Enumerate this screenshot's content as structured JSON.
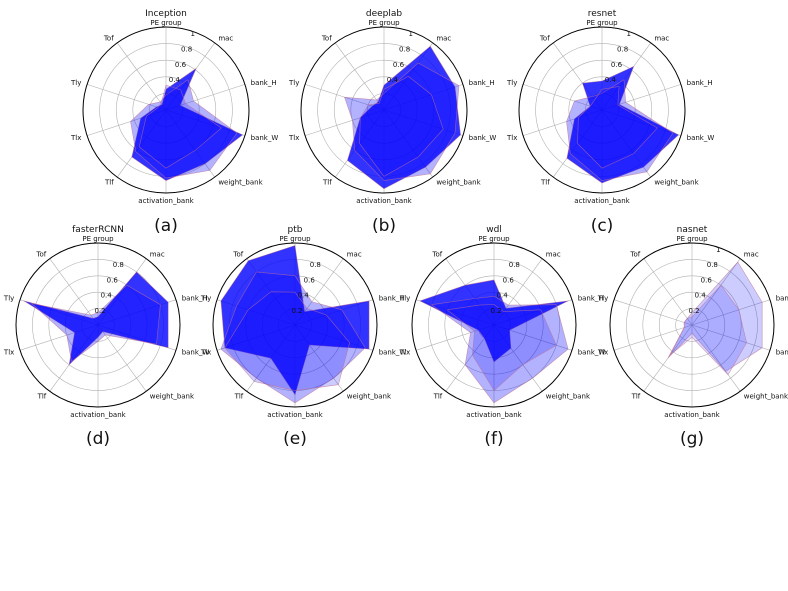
{
  "figure": {
    "background": "#ffffff",
    "fill_color": "#0000ff",
    "edge_color": "#c07090"
  },
  "chart_data": [
    {
      "type": "radar",
      "title": "Inception",
      "caption": "(a)",
      "axes": [
        "PE group",
        "mac",
        "bank_H",
        "bank_W",
        "weight_bank",
        "activation_bank",
        "Tlf",
        "Tlx",
        "Tly",
        "Tof"
      ],
      "radial_ticks": [
        "0.4",
        "0.6",
        "0.8",
        "1"
      ],
      "rlim": [
        0,
        1
      ],
      "grid": true,
      "series": [
        {
          "values": [
            0.25,
            0.62,
            0.18,
            0.97,
            0.8,
            0.85,
            0.7,
            0.32,
            0.12,
            0.08
          ],
          "opacity": 0.8
        },
        {
          "values": [
            0.18,
            0.45,
            0.35,
            0.9,
            0.9,
            0.82,
            0.62,
            0.45,
            0.22,
            0.12
          ],
          "opacity": 0.3
        },
        {
          "values": [
            0.3,
            0.3,
            0.25,
            0.7,
            0.6,
            0.7,
            0.55,
            0.25,
            0.1,
            0.1
          ],
          "opacity": 0.2
        }
      ]
    },
    {
      "type": "radar",
      "title": "deeplab",
      "caption": "(b)",
      "axes": [
        "PE group",
        "mac",
        "bank_H",
        "bank_W",
        "weight_bank",
        "activation_bank",
        "Tlf",
        "Tlx",
        "Tly",
        "Tof"
      ],
      "radial_ticks": [
        "0.4",
        "0.6",
        "0.8",
        "1"
      ],
      "rlim": [
        0,
        1
      ],
      "grid": true,
      "series": [
        {
          "values": [
            0.3,
            0.95,
            0.9,
            0.97,
            0.85,
            0.95,
            0.75,
            0.3,
            0.15,
            0.12
          ],
          "opacity": 0.8
        },
        {
          "values": [
            0.2,
            0.7,
            0.95,
            0.9,
            0.95,
            0.85,
            0.6,
            0.4,
            0.5,
            0.15
          ],
          "opacity": 0.3
        },
        {
          "values": [
            0.25,
            0.5,
            0.6,
            0.75,
            0.7,
            0.8,
            0.5,
            0.3,
            0.2,
            0.1
          ],
          "opacity": 0.2
        }
      ]
    },
    {
      "type": "radar",
      "title": "resnet",
      "caption": "(c)",
      "axes": [
        "PE group",
        "mac",
        "bank_H",
        "bank_W",
        "weight_bank",
        "activation_bank",
        "Tlf",
        "Tlx",
        "Tly",
        "Tof"
      ],
      "radial_ticks": [
        "0.4",
        "0.6",
        "0.8",
        "1"
      ],
      "rlim": [
        0,
        1
      ],
      "grid": true,
      "series": [
        {
          "values": [
            0.35,
            0.65,
            0.22,
            0.97,
            0.85,
            0.88,
            0.72,
            0.35,
            0.15,
            0.4
          ],
          "opacity": 0.8
        },
        {
          "values": [
            0.2,
            0.45,
            0.3,
            0.9,
            0.92,
            0.85,
            0.65,
            0.45,
            0.35,
            0.2
          ],
          "opacity": 0.3
        },
        {
          "values": [
            0.25,
            0.35,
            0.2,
            0.7,
            0.65,
            0.7,
            0.5,
            0.3,
            0.15,
            0.15
          ],
          "opacity": 0.2
        }
      ]
    },
    {
      "type": "radar",
      "title": "fasterRCNN",
      "caption": "(d)",
      "axes": [
        "PE group",
        "mac",
        "bank_H",
        "bank_W",
        "weight_bank",
        "activation_bank",
        "Tlf",
        "Tlx",
        "Tly",
        "Tof"
      ],
      "radial_ticks": [
        "0.2",
        "0.4",
        "0.6",
        "0.8"
      ],
      "rlim": [
        0,
        1
      ],
      "grid": true,
      "series": [
        {
          "values": [
            0.1,
            0.8,
            0.9,
            0.9,
            0.1,
            0.15,
            0.6,
            0.3,
            0.95,
            0.1
          ],
          "opacity": 0.8
        },
        {
          "values": [
            0.15,
            0.6,
            0.8,
            0.75,
            0.15,
            0.2,
            0.55,
            0.4,
            0.85,
            0.15
          ],
          "opacity": 0.3
        }
      ]
    },
    {
      "type": "radar",
      "title": "ptb",
      "caption": "(e)",
      "axes": [
        "PE group",
        "mac",
        "bank_H",
        "bank_W",
        "weight_bank",
        "activation_bank",
        "Tlf",
        "Tlx",
        "Tly",
        "Tof"
      ],
      "radial_ticks": [
        "0.2",
        "0.4",
        "0.6",
        "0.8"
      ],
      "rlim": [
        0,
        1
      ],
      "grid": true,
      "series": [
        {
          "values": [
            0.97,
            0.2,
            0.95,
            0.95,
            0.3,
            0.85,
            0.5,
            0.9,
            0.95,
            0.97
          ],
          "opacity": 0.8
        },
        {
          "values": [
            0.6,
            0.35,
            0.6,
            0.9,
            0.8,
            0.95,
            0.8,
            0.95,
            0.75,
            0.8
          ],
          "opacity": 0.3
        },
        {
          "values": [
            0.4,
            0.25,
            0.4,
            0.7,
            0.9,
            0.8,
            0.85,
            0.9,
            0.6,
            0.5
          ],
          "opacity": 0.2
        }
      ]
    },
    {
      "type": "radar",
      "title": "wdl",
      "caption": "(f)",
      "axes": [
        "PE group",
        "mac",
        "bank_H",
        "bank_W",
        "weight_bank",
        "activation_bank",
        "Tlf",
        "Tlx",
        "Tly",
        "Tof"
      ],
      "radial_ticks": [
        "0.2",
        "0.4",
        "0.6",
        "0.8"
      ],
      "rlim": [
        0,
        1
      ],
      "grid": true,
      "series": [
        {
          "values": [
            0.55,
            0.25,
            0.95,
            0.2,
            0.35,
            0.45,
            0.2,
            0.2,
            0.95,
            0.6
          ],
          "opacity": 0.8
        },
        {
          "values": [
            0.35,
            0.3,
            0.8,
            0.95,
            0.8,
            0.95,
            0.6,
            0.3,
            0.8,
            0.4
          ],
          "opacity": 0.3
        },
        {
          "values": [
            0.25,
            0.2,
            0.6,
            0.8,
            0.6,
            0.8,
            0.45,
            0.25,
            0.6,
            0.3
          ],
          "opacity": 0.2
        }
      ]
    },
    {
      "type": "radar",
      "title": "nasnet",
      "caption": "(g)",
      "axes": [
        "PE group",
        "mac",
        "bank_H",
        "bank_W",
        "weight_bank",
        "activation_bank",
        "Tlf",
        "Tlx",
        "Tly",
        "Tof"
      ],
      "radial_ticks": [
        "0.2",
        "0.4",
        "0.6",
        "0.8",
        "1"
      ],
      "rlim": [
        0,
        1
      ],
      "grid": true,
      "series": [
        {
          "values": [
            0.15,
            0.95,
            0.9,
            0.9,
            0.7,
            0.1,
            0.5,
            0.1,
            0.1,
            0.1
          ],
          "opacity": 0.2
        },
        {
          "values": [
            0.1,
            0.6,
            0.6,
            0.7,
            0.75,
            0.15,
            0.45,
            0.1,
            0.1,
            0.1
          ],
          "opacity": 0.15
        }
      ]
    }
  ]
}
